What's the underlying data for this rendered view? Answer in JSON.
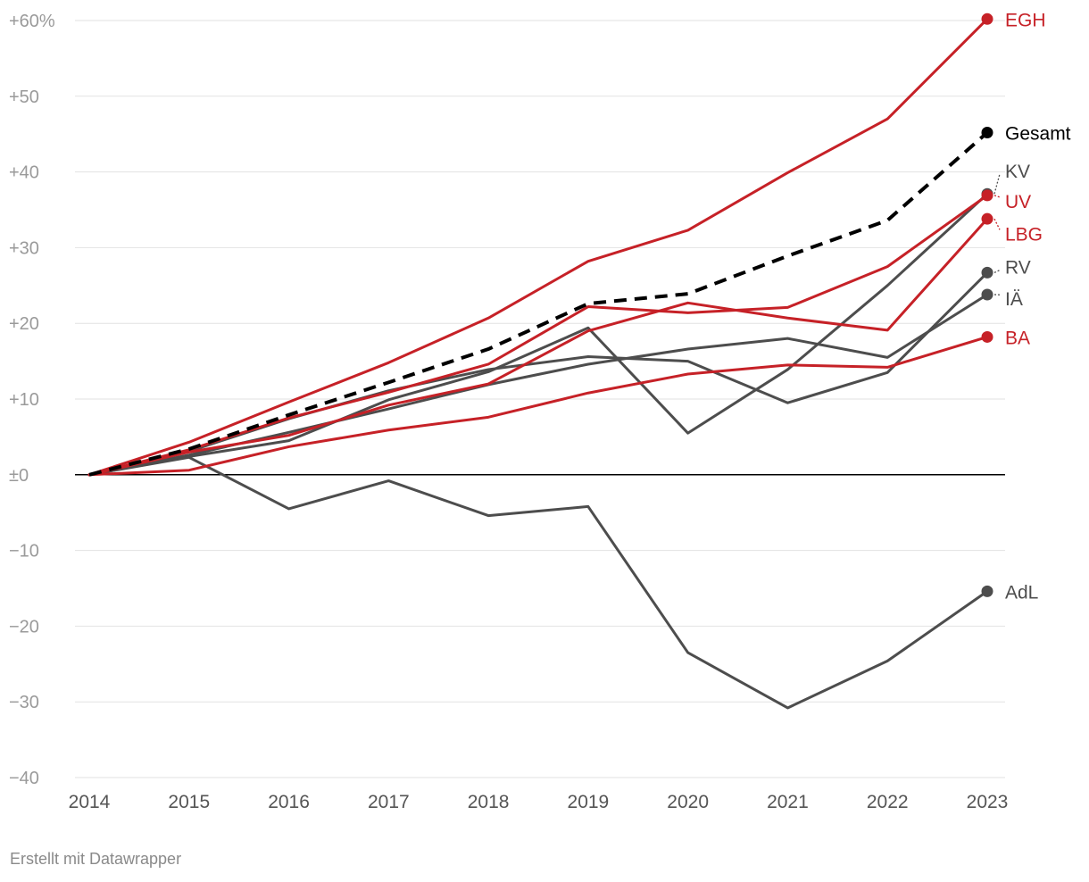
{
  "footer": "Erstellt mit Datawrapper",
  "colors": {
    "red": "#c62127",
    "gray": "#4d4d4d",
    "black": "#000000",
    "grid": "#e2e2e2",
    "zero": "#000000"
  },
  "chart_data": {
    "type": "line",
    "title": "",
    "xlabel": "",
    "ylabel": "",
    "x": [
      "2014",
      "2015",
      "2016",
      "2017",
      "2018",
      "2019",
      "2020",
      "2021",
      "2022",
      "2023"
    ],
    "ylim": [
      -40,
      60
    ],
    "yticks": [
      {
        "value": 60,
        "label": "+60%"
      },
      {
        "value": 50,
        "label": "+50"
      },
      {
        "value": 40,
        "label": "+40"
      },
      {
        "value": 30,
        "label": "+30"
      },
      {
        "value": 20,
        "label": "+20"
      },
      {
        "value": 10,
        "label": "+10"
      },
      {
        "value": 0,
        "label": "±0"
      },
      {
        "value": -10,
        "label": "−10"
      },
      {
        "value": -20,
        "label": "−20"
      },
      {
        "value": -30,
        "label": "−30"
      },
      {
        "value": -40,
        "label": "−40"
      }
    ],
    "series": [
      {
        "name": "EGH",
        "color": "red",
        "dashed": false,
        "values": [
          0,
          4.3,
          9.6,
          14.8,
          20.7,
          28.2,
          32.3,
          39.9,
          47.0,
          60.2
        ]
      },
      {
        "name": "UV",
        "color": "red",
        "dashed": false,
        "values": [
          0,
          3.3,
          7.5,
          10.9,
          14.6,
          22.2,
          21.4,
          22.1,
          27.5,
          36.9
        ]
      },
      {
        "name": "LBG",
        "color": "red",
        "dashed": false,
        "values": [
          0,
          3.0,
          5.2,
          9.2,
          12.0,
          19.0,
          22.7,
          20.7,
          19.1,
          33.8
        ]
      },
      {
        "name": "BA",
        "color": "red",
        "dashed": false,
        "values": [
          0,
          0.6,
          3.7,
          5.9,
          7.6,
          10.8,
          13.3,
          14.5,
          14.2,
          18.2
        ]
      },
      {
        "name": "KV",
        "color": "gray",
        "dashed": false,
        "values": [
          0,
          2.4,
          4.5,
          9.9,
          13.6,
          19.4,
          5.5,
          13.9,
          25.0,
          37.1
        ]
      },
      {
        "name": "RV",
        "color": "gray",
        "dashed": false,
        "values": [
          0,
          3.1,
          7.4,
          11.1,
          13.9,
          15.6,
          15.0,
          9.5,
          13.5,
          26.7
        ]
      },
      {
        "name": "IÄ",
        "color": "gray",
        "dashed": false,
        "values": [
          0,
          2.6,
          5.6,
          8.7,
          11.9,
          14.6,
          16.6,
          18.0,
          15.5,
          23.8
        ]
      },
      {
        "name": "AdL",
        "color": "gray",
        "dashed": false,
        "values": [
          0,
          2.3,
          -4.5,
          -0.8,
          -5.4,
          -4.2,
          -23.5,
          -30.8,
          -24.6,
          -15.4
        ]
      },
      {
        "name": "Gesamt",
        "color": "black",
        "dashed": true,
        "values": [
          0,
          3.4,
          7.9,
          12.2,
          16.6,
          22.6,
          23.9,
          28.9,
          33.6,
          45.2
        ]
      }
    ],
    "labels": [
      {
        "name": "EGH",
        "text": "EGH",
        "color": "red",
        "value": 60.2
      },
      {
        "name": "Gesamt",
        "text": "Gesamt",
        "color": "black",
        "value": 45.2
      },
      {
        "name": "KV",
        "text": "KV",
        "color": "gray",
        "value": 40.2
      },
      {
        "name": "UV",
        "text": "UV",
        "color": "red",
        "value": 36.2
      },
      {
        "name": "LBG",
        "text": "LBG",
        "color": "red",
        "value": 31.9
      },
      {
        "name": "RV",
        "text": "RV",
        "color": "gray",
        "value": 27.5
      },
      {
        "name": "IÄ",
        "text": "IÄ",
        "color": "gray",
        "value": 23.3
      },
      {
        "name": "BA",
        "text": "BA",
        "color": "red",
        "value": 18.2
      },
      {
        "name": "AdL",
        "text": "AdL",
        "color": "gray",
        "value": -15.4
      }
    ]
  }
}
